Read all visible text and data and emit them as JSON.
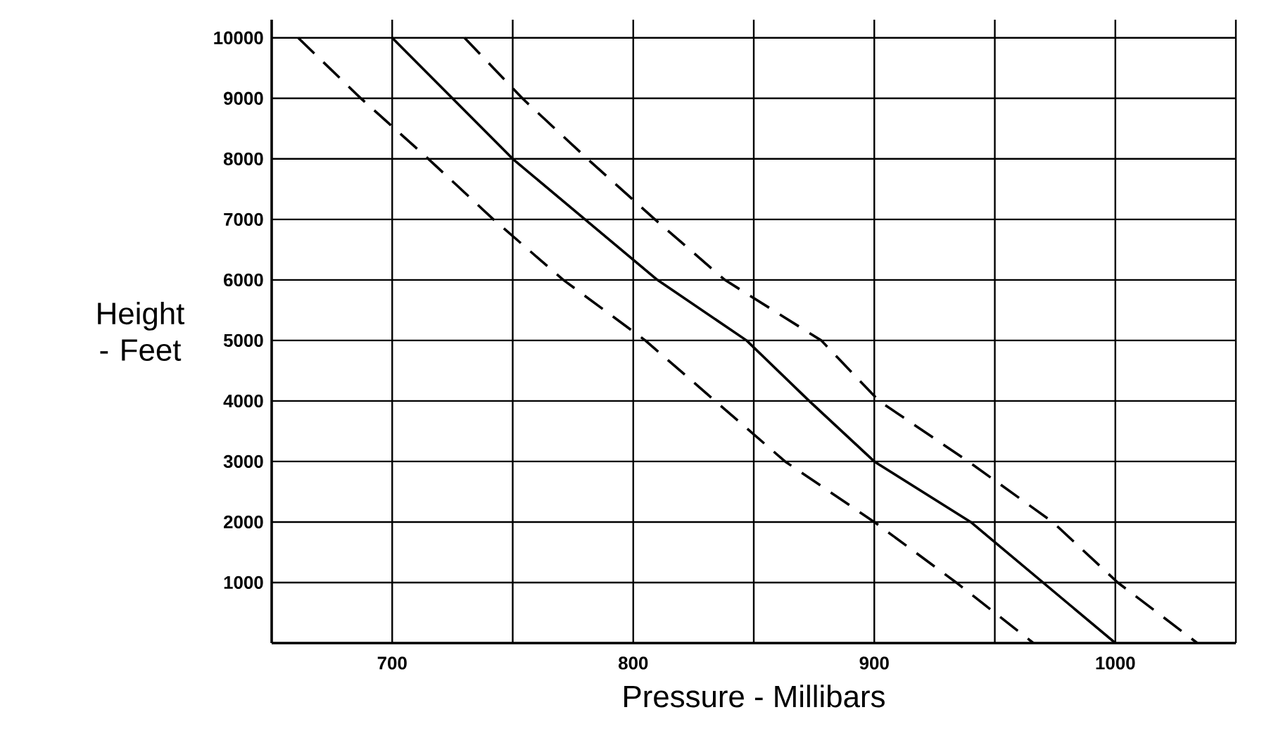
{
  "chart_data": {
    "type": "line",
    "xlabel": "Pressure - Millibars",
    "ylabel": "Height - Feet",
    "x": [
      700,
      750,
      780,
      810,
      847,
      873,
      900,
      940,
      1000
    ],
    "series": [
      {
        "color": "#000000",
        "line_style": "solid",
        "values": [
          10000,
          8000,
          7000,
          6000,
          5000,
          4000,
          3000,
          2000,
          0
        ]
      },
      {
        "color": "#000000",
        "line_style": "dashed",
        "x": [
          730,
          754,
          781,
          809,
          838,
          878,
          902,
          939,
          974,
          1001,
          1034
        ],
        "values": [
          10000,
          9000,
          8000,
          7000,
          6000,
          5000,
          4000,
          3000,
          2000,
          1000,
          0
        ]
      },
      {
        "color": "#000000",
        "line_style": "dashed",
        "x": [
          661,
          687,
          715,
          742,
          771,
          805,
          834,
          863,
          900,
          934,
          966
        ],
        "values": [
          10000,
          9000,
          8000,
          7000,
          6000,
          5000,
          4000,
          3000,
          2000,
          1000,
          0
        ]
      }
    ],
    "xlim": [
      650,
      1050
    ],
    "ylim": [
      0,
      10300
    ],
    "xticks": [
      700,
      {
        "value": 750,
        "label": null
      },
      800,
      {
        "value": 850,
        "label": null
      },
      900,
      {
        "value": 950,
        "label": null
      },
      1000,
      {
        "value": 1050,
        "label": null
      }
    ],
    "yticks": [
      1000,
      2000,
      3000,
      4000,
      5000,
      6000,
      7000,
      8000,
      9000,
      10000
    ],
    "grid": true,
    "marker": "none"
  }
}
